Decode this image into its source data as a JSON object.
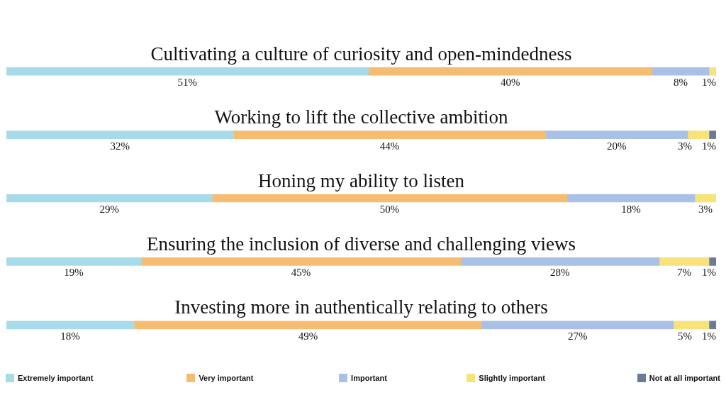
{
  "chart_data": {
    "type": "bar",
    "orientation": "horizontal",
    "stacked": true,
    "legend": "bottom",
    "tick_labels": false,
    "categories": [
      "Cultivating a culture of curiosity and open-mindedness",
      "Working to lift the collective ambition",
      "Honing my ability to listen",
      "Ensuring the inclusion of diverse and challenging views",
      "Investing more in authentically relating to others"
    ],
    "series": [
      {
        "name": "Extremely important",
        "color": "#a8dbe9",
        "values": [
          51,
          32,
          29,
          19,
          18
        ],
        "value_labels": [
          "51%",
          "32%",
          "29%",
          "19%",
          "18%"
        ]
      },
      {
        "name": "Very important",
        "color": "#f6bd72",
        "values": [
          40,
          44,
          50,
          45,
          49
        ],
        "value_labels": [
          "40%",
          "44%",
          "50%",
          "45%",
          "49%"
        ]
      },
      {
        "name": "Important",
        "color": "#a9c1e7",
        "values": [
          8,
          20,
          18,
          28,
          27
        ],
        "value_labels": [
          "8%",
          "20%",
          "18%",
          "28%",
          "27%"
        ]
      },
      {
        "name": "Slightly important",
        "color": "#f8e27a",
        "values": [
          1,
          3,
          3,
          7,
          5
        ],
        "value_labels": [
          "1%",
          "3%",
          "3%",
          "7%",
          "5%"
        ]
      },
      {
        "name": "Not at all important",
        "color": "#6b7a9c",
        "values": [
          null,
          1,
          null,
          1,
          1
        ],
        "value_labels": [
          null,
          "1%",
          null,
          "1%",
          "1%"
        ]
      }
    ]
  }
}
